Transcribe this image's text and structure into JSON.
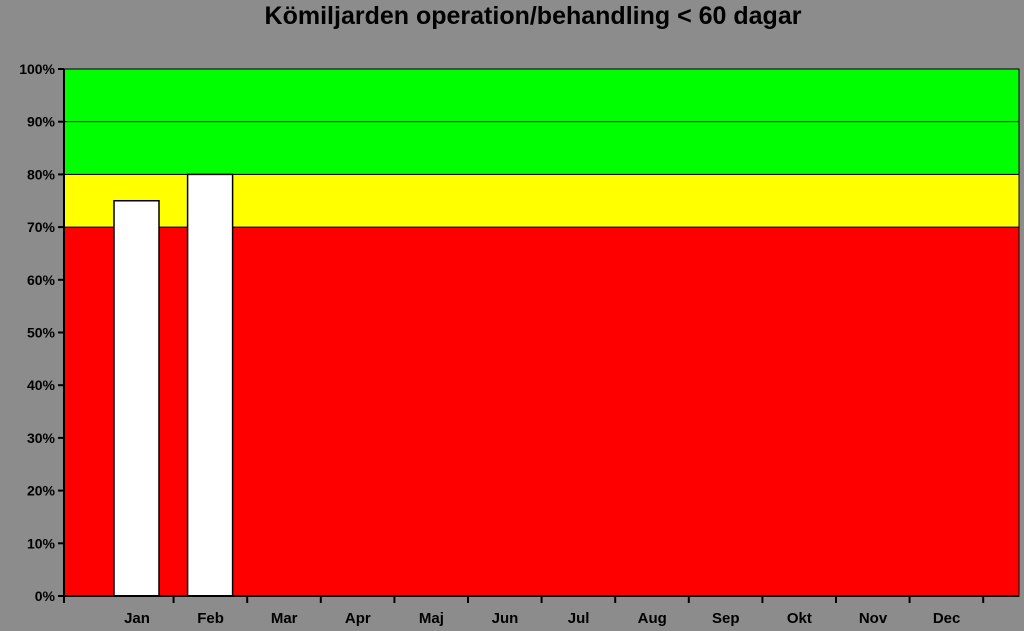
{
  "chart_data": {
    "type": "bar",
    "title": "Kömiljarden operation/behandling < 60 dagar",
    "xlabel": "",
    "ylabel": "",
    "categories": [
      "Jan",
      "Feb",
      "Mar",
      "Apr",
      "Maj",
      "Jun",
      "Jul",
      "Aug",
      "Sep",
      "Okt",
      "Nov",
      "Dec"
    ],
    "series": [
      {
        "values": [
          75,
          80,
          null,
          null,
          null,
          null,
          null,
          null,
          null,
          null,
          null,
          null
        ]
      }
    ],
    "ylim": [
      0,
      100
    ],
    "yticks": [
      "0%",
      "10%",
      "20%",
      "30%",
      "40%",
      "50%",
      "60%",
      "70%",
      "80%",
      "90%",
      "100%"
    ],
    "ytick_values": [
      0,
      10,
      20,
      30,
      40,
      50,
      60,
      70,
      80,
      90,
      100
    ],
    "bands": [
      {
        "from": 0,
        "to": 70,
        "color": "#ff0000"
      },
      {
        "from": 70,
        "to": 80,
        "color": "#ffff00"
      },
      {
        "from": 80,
        "to": 100,
        "color": "#00ff00"
      }
    ],
    "bar_color": "#ffffff",
    "background_color": "#8c8c8c",
    "grid": false,
    "legend": "none"
  }
}
